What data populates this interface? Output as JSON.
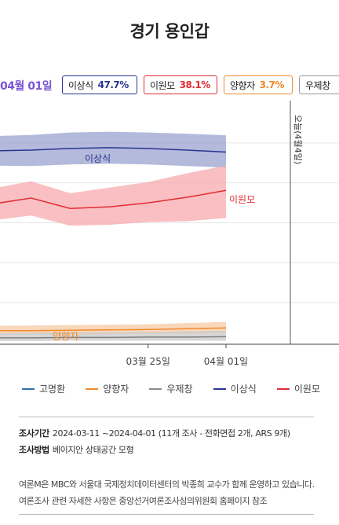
{
  "title": "경기 용인갑",
  "header": {
    "date": "04월 01일"
  },
  "candidates": [
    {
      "name": "이상식",
      "pct": "47.7%",
      "color": "#2a3590"
    },
    {
      "name": "이원모",
      "pct": "38.1%",
      "color": "#e02c35"
    },
    {
      "name": "양향자",
      "pct": "3.7%",
      "color": "#f08a2b"
    },
    {
      "name": "우제창",
      "pct": "",
      "color": "#7f7f7f"
    }
  ],
  "chart_data": {
    "type": "line",
    "x_ticks": [
      "03월 25일",
      "04월 01일"
    ],
    "x": [
      "03-11",
      "03-14",
      "03-18",
      "03-22",
      "03-25",
      "03-29",
      "04-01"
    ],
    "series": [
      {
        "name": "이상식",
        "color": "#2a3590",
        "band_color": "#9aa3cf",
        "values": [
          48.0,
          48.2,
          48.6,
          48.8,
          48.6,
          48.2,
          47.7
        ],
        "lower": [
          44.3,
          44.2,
          44.6,
          44.8,
          44.6,
          44.2,
          43.8
        ],
        "upper": [
          51.7,
          52.0,
          52.6,
          52.8,
          52.6,
          52.3,
          51.9
        ]
      },
      {
        "name": "이원모",
        "color": "#e02c35",
        "band_color": "#f7a9ad",
        "values": [
          34.7,
          36.2,
          33.6,
          34.0,
          35.0,
          36.4,
          38.1
        ],
        "lower": [
          30.6,
          31.8,
          29.3,
          29.5,
          30.2,
          30.4,
          31.2
        ],
        "upper": [
          38.6,
          40.4,
          37.4,
          38.8,
          40.2,
          42.4,
          44.3
        ]
      },
      {
        "name": "양향자",
        "color": "#f08a2b",
        "band_color": "#f5c9a4",
        "values": [
          3.0,
          3.0,
          3.1,
          3.2,
          3.3,
          3.5,
          3.7
        ],
        "lower": [
          2.0,
          2.0,
          2.0,
          2.1,
          2.2,
          2.3,
          2.4
        ],
        "upper": [
          4.2,
          4.3,
          4.4,
          4.5,
          4.6,
          4.9,
          5.2
        ]
      },
      {
        "name": "우제창",
        "color": "#7f7f7f",
        "band_color": "#c9c9c9",
        "values": [
          1.2,
          1.2,
          1.3,
          1.3,
          1.4,
          1.4,
          1.5
        ],
        "lower": [
          0.4,
          0.4,
          0.5,
          0.5,
          0.5,
          0.5,
          0.5
        ],
        "upper": [
          2.4,
          2.5,
          2.6,
          2.6,
          2.7,
          2.8,
          3.0
        ]
      }
    ],
    "series_labels": [
      "이상식",
      "이원모",
      "양향자"
    ],
    "annotation": "오늘(4월4일)",
    "ylim": [
      0,
      60
    ],
    "grid": true,
    "legend": [
      "고명환",
      "양향자",
      "우제창",
      "이상식",
      "이원모"
    ],
    "legend_colors": [
      "#2f6fb0",
      "#f08a2b",
      "#8a8a8a",
      "#2a3590",
      "#e02c35"
    ]
  },
  "info": {
    "period_label": "조사기간",
    "period_value": "2024-03-11 ~2024-04-01 (11개 조사 - 전화면접 2개, ARS 9개)",
    "method_label": "조사방법",
    "method_value": "베이지안 상태공간 모형"
  },
  "notes": [
    "여론M은 MBC와 서울대 국제정치데이터센터의 박종희 교수가 함께 운영하고 있습니다.",
    "여론조사 관련 자세한 사항은 중앙선거여론조사심의위원회 홈페이지 참조"
  ]
}
